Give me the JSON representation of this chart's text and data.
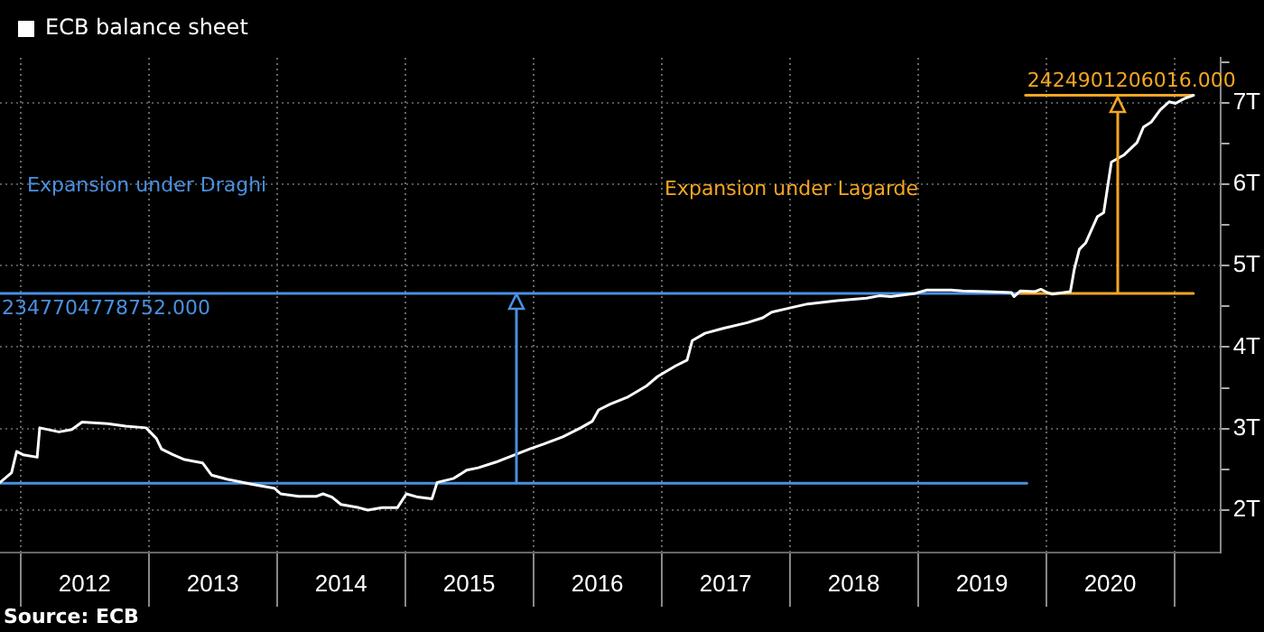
{
  "chart_data": {
    "type": "line",
    "xlim": [
      2011.84,
      2021.36
    ],
    "ylim": [
      1.48,
      7.55
    ],
    "xticks": [
      {
        "value": 2012,
        "label": null
      },
      {
        "value": 2012.5,
        "label": "2012"
      },
      {
        "value": 2013,
        "label": null
      },
      {
        "value": 2013.5,
        "label": "2013"
      },
      {
        "value": 2014,
        "label": null
      },
      {
        "value": 2014.5,
        "label": "2014"
      },
      {
        "value": 2015,
        "label": null
      },
      {
        "value": 2015.5,
        "label": "2015"
      },
      {
        "value": 2016,
        "label": null
      },
      {
        "value": 2016.5,
        "label": "2016"
      },
      {
        "value": 2017,
        "label": null
      },
      {
        "value": 2017.5,
        "label": "2017"
      },
      {
        "value": 2018,
        "label": null
      },
      {
        "value": 2018.5,
        "label": "2018"
      },
      {
        "value": 2019,
        "label": null
      },
      {
        "value": 2019.5,
        "label": "2019"
      },
      {
        "value": 2020,
        "label": null
      },
      {
        "value": 2020.5,
        "label": "2020"
      },
      {
        "value": 2021,
        "label": null
      }
    ],
    "yticks": [
      {
        "value": 2,
        "label": "2T"
      },
      {
        "value": 2.5,
        "label": null
      },
      {
        "value": 3,
        "label": "3T"
      },
      {
        "value": 3.5,
        "label": null
      },
      {
        "value": 4,
        "label": "4T"
      },
      {
        "value": 4.5,
        "label": null
      },
      {
        "value": 5,
        "label": "5T"
      },
      {
        "value": 5.5,
        "label": null
      },
      {
        "value": 6,
        "label": "6T"
      },
      {
        "value": 6.5,
        "label": null
      },
      {
        "value": 7,
        "label": "7T"
      },
      {
        "value": 7.5,
        "label": null
      }
    ],
    "grid": true,
    "legend": "top left",
    "marker": "none",
    "line_style": "solid",
    "series": [
      {
        "name": "ECB balance sheet",
        "color": "#ffffff",
        "x": [
          2011.84,
          2011.93,
          2011.97,
          2012.02,
          2012.13,
          2012.15,
          2012.3,
          2012.4,
          2012.48,
          2012.68,
          2012.82,
          2012.98,
          2013.06,
          2013.1,
          2013.19,
          2013.28,
          2013.42,
          2013.49,
          2013.61,
          2013.8,
          2013.98,
          2014.03,
          2014.17,
          2014.31,
          2014.36,
          2014.43,
          2014.5,
          2014.64,
          2014.71,
          2014.82,
          2014.94,
          2015.01,
          2015.1,
          2015.21,
          2015.25,
          2015.38,
          2015.48,
          2015.57,
          2015.71,
          2015.84,
          2015.97,
          2016.08,
          2016.23,
          2016.37,
          2016.46,
          2016.51,
          2016.6,
          2016.74,
          2016.88,
          2016.97,
          2017.11,
          2017.2,
          2017.24,
          2017.34,
          2017.48,
          2017.67,
          2017.79,
          2017.86,
          2018.0,
          2018.14,
          2018.37,
          2018.6,
          2018.7,
          2018.79,
          2018.98,
          2019.07,
          2019.26,
          2019.35,
          2019.54,
          2019.73,
          2019.75,
          2019.8,
          2019.91,
          2019.96,
          2020.01,
          2020.05,
          2020.19,
          2020.22,
          2020.26,
          2020.31,
          2020.4,
          2020.45,
          2020.48,
          2020.51,
          2020.61,
          2020.71,
          2020.76,
          2020.82,
          2020.89,
          2020.96,
          2021.01,
          2021.08,
          2021.15
        ],
        "values": [
          2.34,
          2.46,
          2.72,
          2.68,
          2.65,
          3.01,
          2.96,
          2.99,
          3.08,
          3.06,
          3.03,
          3.01,
          2.88,
          2.75,
          2.68,
          2.62,
          2.58,
          2.43,
          2.38,
          2.32,
          2.27,
          2.2,
          2.17,
          2.17,
          2.2,
          2.16,
          2.07,
          2.03,
          2.0,
          2.03,
          2.03,
          2.2,
          2.16,
          2.14,
          2.34,
          2.39,
          2.49,
          2.52,
          2.59,
          2.67,
          2.75,
          2.81,
          2.9,
          3.01,
          3.09,
          3.23,
          3.3,
          3.39,
          3.52,
          3.64,
          3.77,
          3.84,
          4.08,
          4.17,
          4.23,
          4.3,
          4.36,
          4.43,
          4.48,
          4.53,
          4.57,
          4.6,
          4.63,
          4.62,
          4.66,
          4.7,
          4.7,
          4.69,
          4.68,
          4.67,
          4.62,
          4.69,
          4.68,
          4.71,
          4.67,
          4.65,
          4.68,
          4.95,
          5.2,
          5.28,
          5.6,
          5.65,
          5.96,
          6.27,
          6.36,
          6.51,
          6.7,
          6.76,
          6.91,
          7.01,
          6.99,
          7.05,
          7.09
        ]
      },
      {
        "color": "#4a90e2",
        "x": [
          2011.84,
          2019.85
        ],
        "values": [
          2.33,
          2.33
        ]
      },
      {
        "color": "#4a90e2",
        "x": [
          2011.84,
          2019.79
        ],
        "values": [
          4.66,
          4.66
        ]
      },
      {
        "color": "#f5a623",
        "x": [
          2019.79,
          2021.15
        ],
        "values": [
          4.66,
          4.66
        ]
      },
      {
        "color": "#f5a623",
        "x": [
          2019.84,
          2021.15
        ],
        "values": [
          7.09,
          7.09
        ]
      }
    ],
    "annotations": [
      "Expansion under Draghi",
      {
        "text": "2347704778752.000",
        "x": 2011.84,
        "y": 4.66
      },
      "Expansion under Lagarde",
      {
        "text": "2424901206016.000",
        "x": 2019.84,
        "y": 7.09
      },
      "Source: ECB"
    ]
  }
}
